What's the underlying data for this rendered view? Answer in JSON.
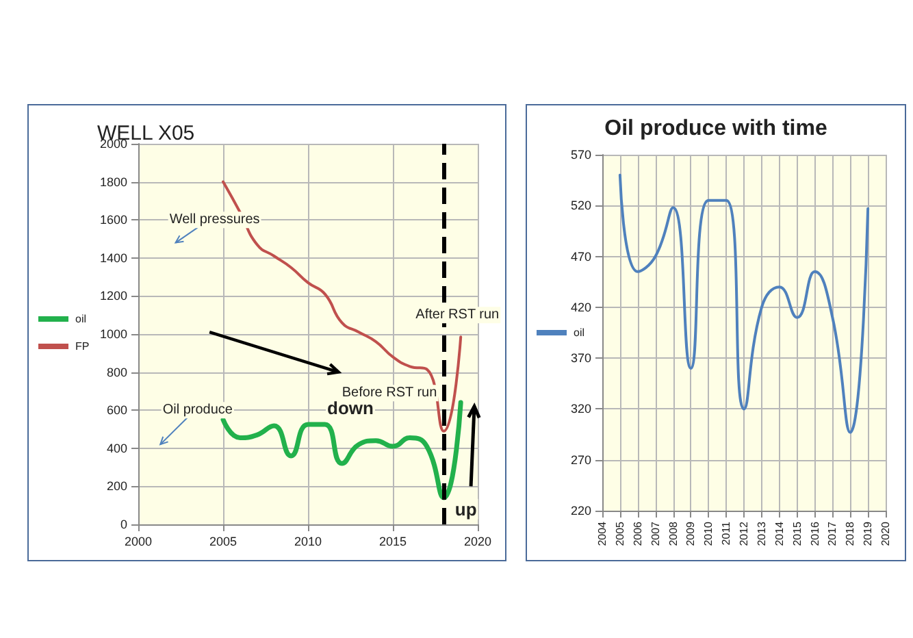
{
  "chart_data": [
    {
      "type": "line",
      "title": "WELL X05",
      "x": [
        2005,
        2006,
        2007,
        2008,
        2009,
        2010,
        2011,
        2012,
        2013,
        2014,
        2015,
        2016,
        2017,
        2018,
        2019
      ],
      "series": [
        {
          "name": "oil",
          "color": "#22b14c",
          "values": [
            550,
            455,
            470,
            518,
            360,
            525,
            525,
            320,
            420,
            440,
            410,
            455,
            410,
            140,
            640
          ]
        },
        {
          "name": "FP",
          "color": "#c0504d",
          "values": [
            1800,
            1640,
            1470,
            1410,
            1350,
            1270,
            1210,
            1060,
            1010,
            960,
            880,
            830,
            815,
            490,
            985
          ]
        }
      ],
      "xlim": [
        2000,
        2020
      ],
      "xticks": [
        2000,
        2005,
        2010,
        2015,
        2020
      ],
      "ylim": [
        0,
        2000
      ],
      "yticks": [
        0,
        200,
        400,
        600,
        800,
        1000,
        1200,
        1400,
        1600,
        1800,
        2000
      ],
      "grid": true,
      "legend": "left",
      "marker": "none",
      "line_style": "solid",
      "ref_lines": [
        {
          "axis": "x",
          "value": 2018,
          "color": "#000000",
          "line_style": "dashed"
        }
      ],
      "annotations": [
        "Well pressures",
        "Oil produce",
        "down",
        "Before RST run",
        "After RST run",
        "up"
      ]
    },
    {
      "type": "line",
      "title": "Oil produce with time",
      "x": [
        2005,
        2006,
        2007,
        2008,
        2009,
        2010,
        2011,
        2012,
        2013,
        2014,
        2015,
        2016,
        2017,
        2018,
        2019
      ],
      "series": [
        {
          "name": "oil",
          "color": "#4f81bd",
          "values": [
            550,
            455,
            470,
            518,
            360,
            525,
            525,
            320,
            420,
            440,
            410,
            455,
            410,
            297,
            517
          ]
        }
      ],
      "xlim": [
        2004,
        2020
      ],
      "xticks": [
        2004,
        2005,
        2006,
        2007,
        2008,
        2009,
        2010,
        2011,
        2012,
        2013,
        2014,
        2015,
        2016,
        2017,
        2018,
        2019,
        2020
      ],
      "ylim": [
        220,
        570
      ],
      "yticks": [
        220,
        270,
        320,
        370,
        420,
        470,
        520,
        570
      ],
      "grid": true,
      "legend": "left",
      "marker": "none",
      "line_style": "solid"
    }
  ]
}
